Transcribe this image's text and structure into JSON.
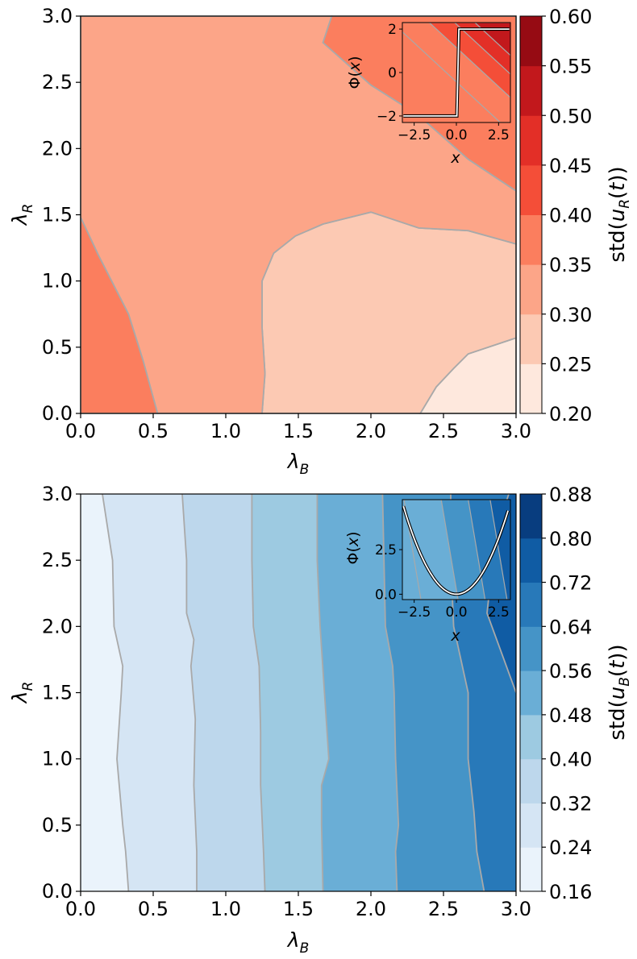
{
  "chart_data": [
    {
      "type": "contour",
      "colormap": "Reds",
      "xlabel": "λ_B",
      "ylabel": "λ_R",
      "xlim": [
        0,
        3
      ],
      "ylim": [
        0,
        3
      ],
      "x_ticks": [
        "0.0",
        "0.5",
        "1.0",
        "1.5",
        "2.0",
        "2.5",
        "3.0"
      ],
      "y_ticks": [
        "0.0",
        "0.5",
        "1.0",
        "1.5",
        "2.0",
        "2.5",
        "3.0"
      ],
      "colorbar": {
        "label": "std(u_R(t))",
        "levels": [
          0.2,
          0.25,
          0.3,
          0.35,
          0.4,
          0.45,
          0.5,
          0.55,
          0.6
        ],
        "tick_labels": [
          "0.20",
          "0.25",
          "0.30",
          "0.35",
          "0.40",
          "0.45",
          "0.50",
          "0.55",
          "0.60"
        ],
        "colors": [
          "#fee8dd",
          "#fcc9b3",
          "#fca588",
          "#fb7e5e",
          "#f44e38",
          "#e32f27",
          "#c2181c",
          "#960b13"
        ]
      },
      "regions": [
        {
          "level_range": [
            0.2,
            0.25
          ],
          "boundary": [
            [
              2.34,
              0
            ],
            [
              2.45,
              0.2
            ],
            [
              2.57,
              0.34
            ],
            [
              2.67,
              0.45
            ],
            [
              3.0,
              0.57
            ],
            [
              3.0,
              0
            ]
          ]
        },
        {
          "level_range": [
            0.25,
            0.3
          ],
          "boundary": [
            [
              1.25,
              0
            ],
            [
              1.27,
              0.3
            ],
            [
              1.25,
              0.65
            ],
            [
              1.25,
              1.0
            ],
            [
              1.33,
              1.21
            ],
            [
              1.48,
              1.34
            ],
            [
              1.67,
              1.43
            ],
            [
              2.0,
              1.52
            ],
            [
              2.33,
              1.4
            ],
            [
              2.67,
              1.38
            ],
            [
              3.0,
              1.28
            ],
            [
              3.0,
              0.57
            ],
            [
              2.67,
              0.45
            ],
            [
              2.57,
              0.34
            ],
            [
              2.45,
              0.2
            ],
            [
              2.34,
              0
            ]
          ]
        },
        {
          "level_range": [
            0.3,
            0.35
          ],
          "boundary": [
            [
              0,
              1.48
            ],
            [
              0.12,
              1.2
            ],
            [
              0.33,
              0.75
            ],
            [
              0.43,
              0.4
            ],
            [
              0.53,
              0
            ],
            [
              1.25,
              0
            ],
            [
              1.27,
              0.3
            ],
            [
              1.25,
              0.65
            ],
            [
              1.25,
              1.0
            ],
            [
              1.33,
              1.21
            ],
            [
              1.48,
              1.34
            ],
            [
              1.67,
              1.43
            ],
            [
              2.0,
              1.52
            ],
            [
              2.33,
              1.4
            ],
            [
              2.67,
              1.38
            ],
            [
              3.0,
              1.28
            ],
            [
              3.0,
              1.68
            ],
            [
              2.67,
              1.92
            ],
            [
              2.33,
              2.25
            ],
            [
              2.0,
              2.48
            ],
            [
              1.67,
              2.8
            ],
            [
              1.73,
              3.0
            ],
            [
              0,
              3.0
            ]
          ]
        },
        {
          "level_range": [
            0.35,
            0.4
          ],
          "boundary": [
            [
              0,
              1.48
            ],
            [
              0.12,
              1.2
            ],
            [
              0.33,
              0.75
            ],
            [
              0.43,
              0.4
            ],
            [
              0.53,
              0
            ],
            [
              0,
              0
            ]
          ]
        },
        {
          "level_range": [
            0.35,
            0.4
          ],
          "boundary": [
            [
              1.73,
              3.0
            ],
            [
              1.67,
              2.8
            ],
            [
              2.0,
              2.48
            ],
            [
              2.33,
              2.25
            ],
            [
              2.67,
              1.92
            ],
            [
              3.0,
              1.68
            ],
            [
              3.0,
              3.0
            ]
          ]
        }
      ],
      "inset": {
        "xlabel": "x",
        "ylabel": "Φ(x)",
        "xlim": [
          -3.2,
          3.2
        ],
        "ylim": [
          -2.3,
          2.3
        ],
        "x_ticks": [
          "−2.5",
          "0.0",
          "2.5"
        ],
        "y_ticks": [
          "−2",
          "0",
          "2"
        ],
        "bands": [
          {
            "color": "#fb7e5e",
            "cut": -0.6
          },
          {
            "color": "#f44e38",
            "cut": 1.6
          },
          {
            "color": "#e32f27",
            "cut": 3.1
          },
          {
            "color": "#c2181c",
            "cut": 4.3
          }
        ],
        "function": "step",
        "curve_points": [
          [
            -3.14,
            -2.0
          ],
          [
            0.03,
            -2.0
          ],
          [
            0.15,
            2.0
          ],
          [
            3.14,
            2.0
          ]
        ]
      }
    },
    {
      "type": "contour",
      "colormap": "Blues",
      "xlabel": "λ_B",
      "ylabel": "λ_R",
      "xlim": [
        0,
        3
      ],
      "ylim": [
        0,
        3
      ],
      "x_ticks": [
        "0.0",
        "0.5",
        "1.0",
        "1.5",
        "2.0",
        "2.5",
        "3.0"
      ],
      "y_ticks": [
        "0.0",
        "0.5",
        "1.0",
        "1.5",
        "2.0",
        "2.5",
        "3.0"
      ],
      "colorbar": {
        "label": "std(u_B(t))",
        "levels": [
          0.16,
          0.24,
          0.32,
          0.4,
          0.48,
          0.56,
          0.64,
          0.72,
          0.8,
          0.88
        ],
        "tick_labels": [
          "0.16",
          "0.24",
          "0.32",
          "0.40",
          "0.48",
          "0.56",
          "0.64",
          "0.72",
          "0.80",
          "0.88"
        ],
        "colors": [
          "#eaf3fb",
          "#d5e5f4",
          "#bdd7ec",
          "#9dcae1",
          "#6aaed6",
          "#4594c7",
          "#2879b9",
          "#105ca4",
          "#083d7f"
        ]
      },
      "contour_lines": [
        [
          [
            0.15,
            3.0
          ],
          [
            0.22,
            2.5
          ],
          [
            0.23,
            2.0
          ],
          [
            0.29,
            1.7
          ],
          [
            0.28,
            1.5
          ],
          [
            0.25,
            1.0
          ],
          [
            0.29,
            0.5
          ],
          [
            0.31,
            0.3
          ],
          [
            0.33,
            0
          ]
        ],
        [
          [
            0.7,
            3.0
          ],
          [
            0.73,
            2.5
          ],
          [
            0.73,
            2.1
          ],
          [
            0.78,
            1.9
          ],
          [
            0.76,
            1.7
          ],
          [
            0.79,
            1.3
          ],
          [
            0.78,
            0.8
          ],
          [
            0.8,
            0.3
          ],
          [
            0.8,
            0
          ]
        ],
        [
          [
            1.18,
            3.0
          ],
          [
            1.18,
            2.5
          ],
          [
            1.19,
            2.0
          ],
          [
            1.23,
            1.7
          ],
          [
            1.24,
            1.2
          ],
          [
            1.24,
            0.8
          ],
          [
            1.26,
            0.3
          ],
          [
            1.27,
            0
          ]
        ],
        [
          [
            1.63,
            3.0
          ],
          [
            1.63,
            2.8
          ],
          [
            1.63,
            2.5
          ],
          [
            1.65,
            2.0
          ],
          [
            1.71,
            1.0
          ],
          [
            1.66,
            0.8
          ],
          [
            1.66,
            0.5
          ],
          [
            1.67,
            0
          ]
        ],
        [
          [
            2.08,
            3.0
          ],
          [
            2.1,
            2.0
          ],
          [
            2.15,
            1.7
          ],
          [
            2.16,
            1.5
          ],
          [
            2.17,
            1.0
          ],
          [
            2.19,
            0.5
          ],
          [
            2.17,
            0.3
          ],
          [
            2.18,
            0
          ]
        ],
        [
          [
            2.55,
            3.0
          ],
          [
            2.55,
            2.5
          ],
          [
            2.57,
            2.0
          ],
          [
            2.67,
            1.5
          ],
          [
            2.67,
            1.0
          ],
          [
            2.71,
            0.6
          ],
          [
            2.73,
            0.3
          ],
          [
            2.78,
            0
          ]
        ],
        [
          [
            2.95,
            3.0
          ],
          [
            2.86,
            2.7
          ],
          [
            2.8,
            2.1
          ],
          [
            3.0,
            1.5
          ]
        ]
      ],
      "inset": {
        "xlabel": "x",
        "ylabel": "Φ(x)",
        "xlim": [
          -3.2,
          3.2
        ],
        "ylim": [
          -0.3,
          5.3
        ],
        "x_ticks": [
          "−2.5",
          "0.0",
          "2.5"
        ],
        "y_ticks": [
          "0.0",
          "2.5"
        ],
        "bands": [
          {
            "color": "#6aaed6",
            "cut": -2.5
          },
          {
            "color": "#4594c7",
            "cut": -0.3
          },
          {
            "color": "#2879b9",
            "cut": 1.3
          },
          {
            "color": "#105ca4",
            "cut": 2.6
          }
        ],
        "function": "quadratic",
        "curve_coefficient": 0.5
      }
    }
  ]
}
